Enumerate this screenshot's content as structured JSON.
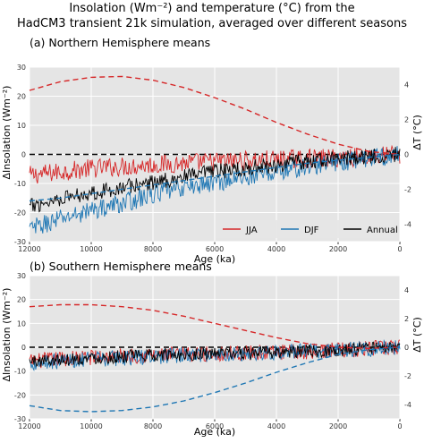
{
  "figure": {
    "title_line1": "Insolation (Wm⁻²) and temperature (°C) from the",
    "title_line2": "HadCM3 transient 21k simulation, averaged over different seasons"
  },
  "colors": {
    "jja": "#d62728",
    "djf": "#1f77b4",
    "annual": "#000000",
    "panel_bg": "#e5e5e5",
    "grid": "#ffffff"
  },
  "chart_data": [
    {
      "type": "line",
      "title": "(a) Northern Hemisphere means",
      "xlabel": "Age (ka)",
      "ylabel": "ΔInsolation (Wm⁻²)",
      "ylabel_right": "ΔT (°C)",
      "xlim": [
        12000,
        0
      ],
      "ylim": [
        -30,
        30
      ],
      "ylim_right": [
        -5,
        5
      ],
      "x_ticks": [
        12000,
        10000,
        8000,
        6000,
        4000,
        2000,
        0
      ],
      "y_ticks": [
        -30,
        -20,
        -10,
        0,
        10,
        20,
        30
      ],
      "y_ticks_right": [
        -4,
        -2,
        0,
        2,
        4
      ],
      "grid": true,
      "legend_position": "lower-right",
      "legend": [
        "JJA",
        "DJF",
        "Annual"
      ],
      "insolation_series": [
        {
          "name": "JJA",
          "style": "dashed",
          "x": [
            12000,
            11000,
            10000,
            9000,
            8000,
            7000,
            6000,
            5000,
            4000,
            3000,
            2000,
            1000,
            0
          ],
          "values": [
            22,
            25,
            26.5,
            26.8,
            25.5,
            23,
            19.5,
            15.5,
            11,
            7,
            3.5,
            1,
            0
          ]
        },
        {
          "name": "DJF",
          "style": "dashed",
          "x": [
            12000,
            11000,
            10000,
            9000,
            8000,
            7000,
            6000,
            5000,
            4000,
            3000,
            2000,
            1000,
            0
          ],
          "values": [
            -16,
            -15,
            -13.5,
            -12,
            -10.5,
            -9,
            -7.5,
            -6,
            -4.5,
            -3,
            -2,
            -1,
            0
          ]
        }
      ],
      "temperature_series": [
        {
          "name": "JJA",
          "x": [
            12000,
            11000,
            10000,
            9000,
            8000,
            7000,
            6000,
            5000,
            4000,
            3000,
            2000,
            1000,
            0
          ],
          "values": [
            -1.2,
            -1.0,
            -0.8,
            -0.7,
            -0.6,
            -0.5,
            -0.4,
            -0.35,
            -0.3,
            -0.25,
            -0.2,
            -0.1,
            0
          ]
        },
        {
          "name": "DJF",
          "x": [
            12000,
            11000,
            10000,
            9000,
            8000,
            7000,
            6000,
            5000,
            4000,
            3000,
            2000,
            1000,
            0
          ],
          "values": [
            -4.3,
            -3.7,
            -3.2,
            -2.8,
            -2.3,
            -1.9,
            -1.6,
            -1.3,
            -1.0,
            -0.7,
            -0.45,
            -0.2,
            0
          ]
        },
        {
          "name": "Annual",
          "x": [
            12000,
            11000,
            10000,
            9000,
            8000,
            7000,
            6000,
            5000,
            4000,
            3000,
            2000,
            1000,
            0
          ],
          "values": [
            -3.0,
            -2.5,
            -2.2,
            -1.9,
            -1.6,
            -1.3,
            -1.0,
            -0.8,
            -0.6,
            -0.4,
            -0.25,
            -0.1,
            0
          ]
        }
      ]
    },
    {
      "type": "line",
      "title": "(b) Southern Hemisphere means",
      "xlabel": "Age (ka)",
      "ylabel": "ΔInsolation (Wm⁻²)",
      "ylabel_right": "ΔT (°C)",
      "xlim": [
        12000,
        0
      ],
      "ylim": [
        -30,
        30
      ],
      "ylim_right": [
        -5,
        5
      ],
      "x_ticks": [
        12000,
        10000,
        8000,
        6000,
        4000,
        2000,
        0
      ],
      "y_ticks": [
        -30,
        -20,
        -10,
        0,
        10,
        20,
        30
      ],
      "y_ticks_right": [
        -4,
        -2,
        0,
        2,
        4
      ],
      "grid": true,
      "insolation_series": [
        {
          "name": "JJA",
          "style": "dashed",
          "x": [
            12000,
            11000,
            10000,
            9000,
            8000,
            7000,
            6000,
            5000,
            4000,
            3000,
            2000,
            1000,
            0
          ],
          "values": [
            17,
            17.8,
            17.8,
            17,
            15.5,
            13,
            10,
            7,
            4,
            1.5,
            0,
            -0.5,
            0
          ]
        },
        {
          "name": "DJF",
          "style": "dashed",
          "x": [
            12000,
            11000,
            10000,
            9000,
            8000,
            7000,
            6000,
            5000,
            4000,
            3000,
            2000,
            1000,
            0
          ],
          "values": [
            -24.5,
            -26.5,
            -27,
            -26.5,
            -25,
            -22.5,
            -19,
            -15,
            -10.5,
            -6.5,
            -3,
            -1,
            0
          ]
        }
      ],
      "temperature_series": [
        {
          "name": "JJA",
          "x": [
            12000,
            11000,
            10000,
            9000,
            8000,
            7000,
            6000,
            5000,
            4000,
            3000,
            2000,
            1000,
            0
          ],
          "values": [
            -1.0,
            -0.8,
            -0.7,
            -0.6,
            -0.55,
            -0.5,
            -0.45,
            -0.4,
            -0.35,
            -0.3,
            -0.2,
            -0.1,
            0
          ]
        },
        {
          "name": "DJF",
          "x": [
            12000,
            11000,
            10000,
            9000,
            8000,
            7000,
            6000,
            5000,
            4000,
            3000,
            2000,
            1000,
            0
          ],
          "values": [
            -1.1,
            -0.95,
            -0.85,
            -0.75,
            -0.65,
            -0.55,
            -0.5,
            -0.45,
            -0.35,
            -0.3,
            -0.2,
            -0.1,
            0
          ]
        },
        {
          "name": "Annual",
          "x": [
            12000,
            11000,
            10000,
            9000,
            8000,
            7000,
            6000,
            5000,
            4000,
            3000,
            2000,
            1000,
            0
          ],
          "values": [
            -1.0,
            -0.85,
            -0.75,
            -0.65,
            -0.55,
            -0.5,
            -0.45,
            -0.4,
            -0.35,
            -0.3,
            -0.2,
            -0.1,
            0
          ]
        }
      ]
    }
  ]
}
